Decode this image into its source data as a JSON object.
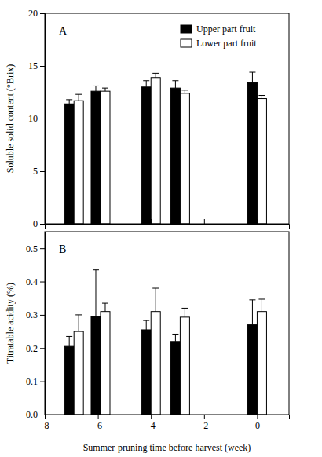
{
  "chart_data": [
    {
      "type": "bar",
      "title": "A",
      "y_label": "Soluble solid content (°Brix)",
      "x": [
        -6.9,
        -5.9,
        -4,
        -2.9,
        0
      ],
      "xlim": [
        -8,
        1.2
      ],
      "xticks": [
        -8,
        -6,
        -4,
        -2,
        0
      ],
      "ylim": [
        0,
        20
      ],
      "yticks": [
        0,
        5,
        10,
        15,
        20
      ],
      "tick_labels": "y",
      "legend": "top-right",
      "series": [
        {
          "name": "Upper part fruit",
          "color": "#000000",
          "values": [
            11.4,
            12.6,
            13.0,
            12.9,
            13.4
          ],
          "errors": [
            0.4,
            0.5,
            0.6,
            0.7,
            1.0
          ]
        },
        {
          "name": "Lower part fruit",
          "color": "#ffffff",
          "values": [
            11.7,
            12.6,
            13.9,
            12.4,
            11.9
          ],
          "errors": [
            0.6,
            0.3,
            0.4,
            0.3,
            0.3
          ]
        }
      ]
    },
    {
      "type": "bar",
      "title": "B",
      "y_label": "Titratable acidity (%)",
      "x_label": "Summer-pruning time before harvest (week)",
      "x": [
        -6.9,
        -5.9,
        -4,
        -2.9,
        0
      ],
      "xlim": [
        -8,
        1.2
      ],
      "xticks": [
        -8,
        -6,
        -4,
        -2,
        0
      ],
      "ylim": [
        0,
        0.55
      ],
      "yticks": [
        {
          "value": 0,
          "label": "0.0"
        },
        0.1,
        0.2,
        0.3,
        0.4,
        0.5
      ],
      "series": [
        {
          "name": "Upper part fruit",
          "color": "#000000",
          "values": [
            0.205,
            0.295,
            0.255,
            0.22,
            0.27
          ],
          "errors": [
            0.03,
            0.14,
            0.028,
            0.022,
            0.075
          ]
        },
        {
          "name": "Lower part fruit",
          "color": "#ffffff",
          "values": [
            0.25,
            0.31,
            0.31,
            0.293,
            0.31
          ],
          "errors": [
            0.05,
            0.025,
            0.07,
            0.027,
            0.037
          ]
        }
      ]
    }
  ]
}
